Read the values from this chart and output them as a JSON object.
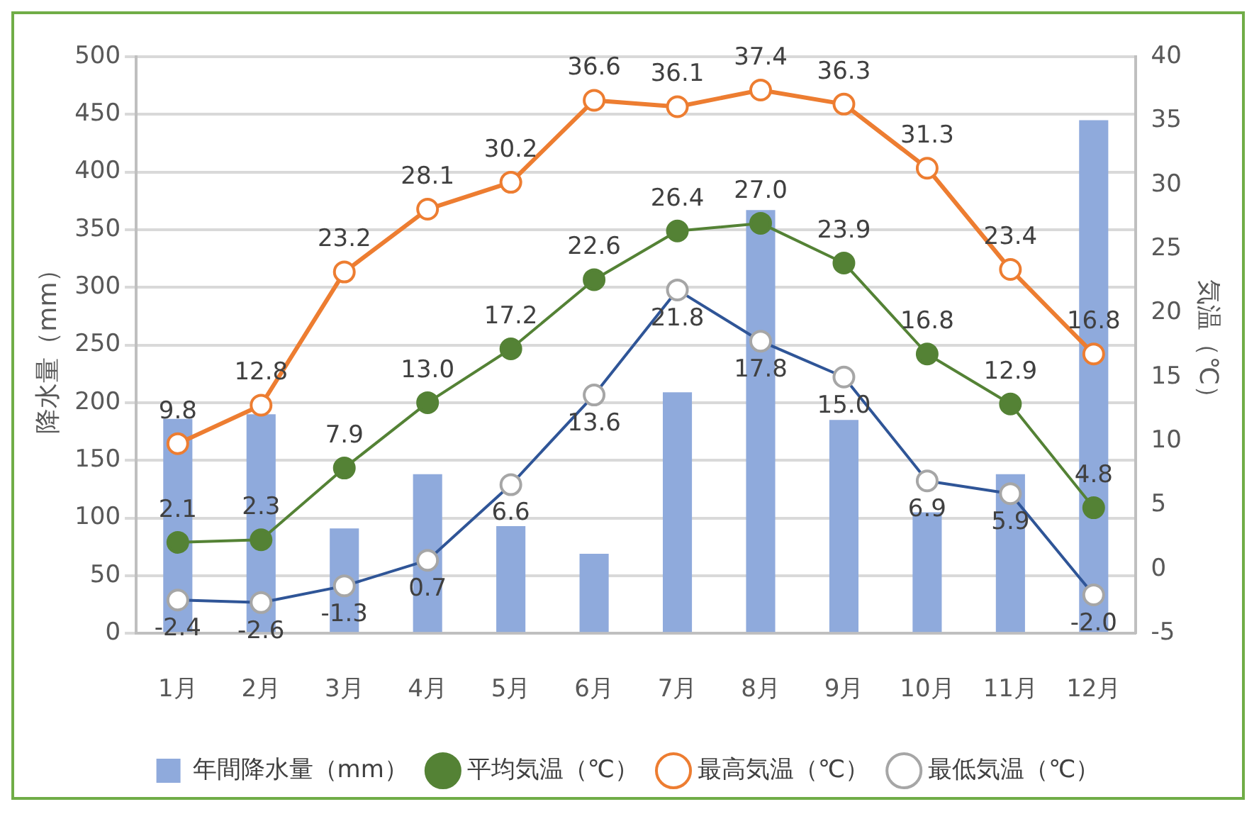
{
  "chart_data": {
    "type": "bar",
    "categories": [
      "1月",
      "2月",
      "3月",
      "4月",
      "5月",
      "6月",
      "7月",
      "8月",
      "9月",
      "10月",
      "11月",
      "12月"
    ],
    "series": [
      {
        "name": "年間降水量（mm）",
        "color": "#8faadc",
        "values": [
          186,
          190,
          91,
          138,
          93,
          69,
          209,
          367,
          185,
          105,
          138,
          445
        ]
      },
      {
        "name": "平均気温（℃）",
        "type": "line",
        "axis": "y2",
        "color": "#548235",
        "marker": "circle",
        "values": [
          2.1,
          2.3,
          7.9,
          13.0,
          17.2,
          22.6,
          26.4,
          27.0,
          23.9,
          16.8,
          12.9,
          4.8
        ],
        "value_labels": [
          "2.1",
          "2.3",
          "7.9",
          "13.0",
          "17.2",
          "22.6",
          "26.4",
          "27.0",
          "23.9",
          "16.8",
          "12.9",
          "4.8"
        ]
      },
      {
        "name": "最高気温（℃）",
        "type": "line",
        "axis": "y2",
        "color": "#ed7d31",
        "marker": "circle",
        "values": [
          9.8,
          12.8,
          23.2,
          28.1,
          30.2,
          36.6,
          36.1,
          37.4,
          36.3,
          31.3,
          23.4,
          16.8
        ],
        "value_labels": [
          "9.8",
          "12.8",
          "23.2",
          "28.1",
          "30.2",
          "36.6",
          "36.1",
          "37.4",
          "36.3",
          "31.3",
          "23.4",
          "16.8"
        ]
      },
      {
        "name": "最低気温（℃）",
        "type": "line",
        "axis": "y2",
        "color": "#2f5597",
        "marker": "circle",
        "values": [
          -2.4,
          -2.6,
          -1.3,
          0.7,
          6.6,
          13.6,
          21.8,
          17.8,
          15.0,
          6.9,
          5.9,
          -2.0
        ],
        "value_labels": [
          "-2.4",
          "-2.6",
          "-1.3",
          "0.7",
          "6.6",
          "13.6",
          "21.8",
          "17.8",
          "15.0",
          "6.9",
          "5.9",
          "-2.0"
        ]
      }
    ],
    "ylabel": "降水量（mm）",
    "y2label": "気温（℃）",
    "ylim": [
      0,
      500
    ],
    "yticks": [
      0,
      50,
      100,
      150,
      200,
      250,
      300,
      350,
      400,
      450,
      500
    ],
    "y2lim": [
      -5,
      40
    ],
    "y2ticks": [
      -5,
      0,
      5,
      10,
      15,
      20,
      25,
      30,
      35,
      40
    ],
    "grid": "y",
    "legend": "bottom"
  }
}
